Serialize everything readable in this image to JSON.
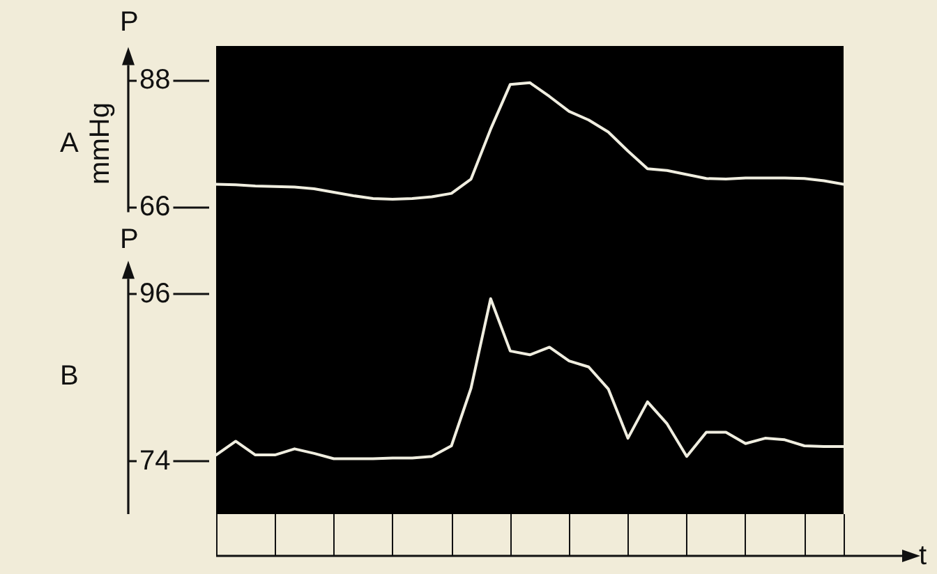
{
  "chart_data": [
    {
      "type": "line",
      "title": "A",
      "ylabel": "mmHg",
      "annotations": [
        "P"
      ],
      "tick_labels": "y",
      "marker": "none",
      "categories": [
        null,
        null,
        null,
        null,
        null,
        null,
        null,
        null,
        null,
        null,
        null,
        null,
        null,
        null,
        null,
        null,
        null,
        null,
        null,
        null,
        null,
        null,
        null,
        null,
        null,
        null,
        null,
        null,
        null,
        null,
        null,
        null,
        null
      ],
      "series": [
        {
          "color": "#f0eee0",
          "values": [
            69.9,
            69.8,
            69.6,
            69.5,
            69.4,
            69.1,
            68.5,
            67.9,
            67.4,
            67.3,
            67.4,
            67.7,
            68.3,
            70.8,
            79.5,
            87.3,
            87.6,
            85.2,
            82.6,
            81.1,
            79.0,
            75.7,
            72.6,
            72.3,
            71.6,
            70.9,
            70.8,
            71.0,
            71.0,
            71.0,
            70.9,
            70.5,
            69.9
          ]
        }
      ],
      "ylim": [
        60,
        94
      ],
      "yticks": [
        66,
        88
      ]
    },
    {
      "type": "line",
      "title": "B",
      "xlabel": "t",
      "annotations": [
        "P"
      ],
      "tick_labels": "y",
      "marker": "none",
      "categories": [
        null,
        null,
        null,
        null,
        null,
        null,
        null,
        null,
        null,
        null,
        null,
        null,
        null,
        null,
        null,
        null,
        null,
        null,
        null,
        null,
        null,
        null,
        null,
        null,
        null,
        null,
        null,
        null,
        null,
        null,
        null,
        null,
        null
      ],
      "series": [
        {
          "color": "#f0eee0",
          "values": [
            74.8,
            76.6,
            74.8,
            74.8,
            75.6,
            75.0,
            74.3,
            74.3,
            74.3,
            74.4,
            74.4,
            74.6,
            76.0,
            83.6,
            95.4,
            88.5,
            88.0,
            89.0,
            87.2,
            86.4,
            83.5,
            77.0,
            81.8,
            78.9,
            74.6,
            77.8,
            77.8,
            76.3,
            77.0,
            76.8,
            76.0,
            75.9,
            75.9
          ]
        }
      ],
      "ylim": [
        67,
        103
      ],
      "yticks": [
        74,
        96
      ]
    }
  ]
}
